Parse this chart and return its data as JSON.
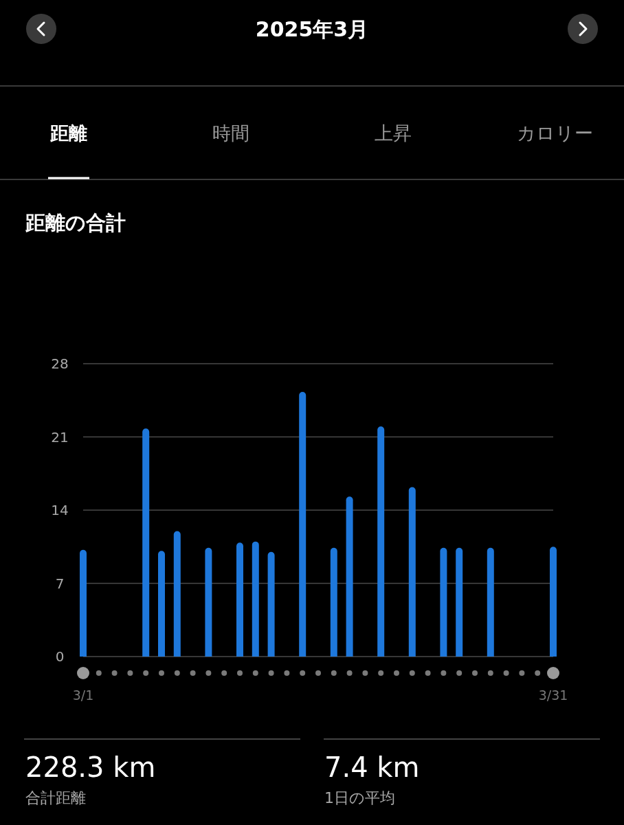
{
  "chart_data": {
    "type": "bar",
    "title": "2025年3月",
    "subtitle": "距離の合計",
    "categories": [
      "3/1",
      null,
      null,
      null,
      null,
      null,
      null,
      null,
      null,
      null,
      null,
      null,
      null,
      null,
      null,
      null,
      null,
      null,
      null,
      null,
      null,
      null,
      null,
      null,
      null,
      null,
      null,
      null,
      null,
      null,
      "3/31"
    ],
    "values": [
      10.2,
      null,
      null,
      null,
      21.8,
      10.1,
      12.0,
      null,
      10.4,
      null,
      10.9,
      11.0,
      10.0,
      null,
      25.3,
      null,
      10.4,
      15.3,
      null,
      22.0,
      null,
      16.2,
      null,
      10.4,
      10.4,
      null,
      10.4,
      null,
      null,
      null,
      10.5
    ],
    "color": "#1e78dc",
    "ylim": [
      0,
      28
    ],
    "yticks": [
      0,
      7,
      14,
      21,
      28
    ],
    "grid": "y",
    "annotations": [
      "距離",
      "時間",
      "上昇",
      "カロリー",
      "228.3 km",
      "合計距離",
      "7.4 km",
      "1日の平均"
    ]
  }
}
